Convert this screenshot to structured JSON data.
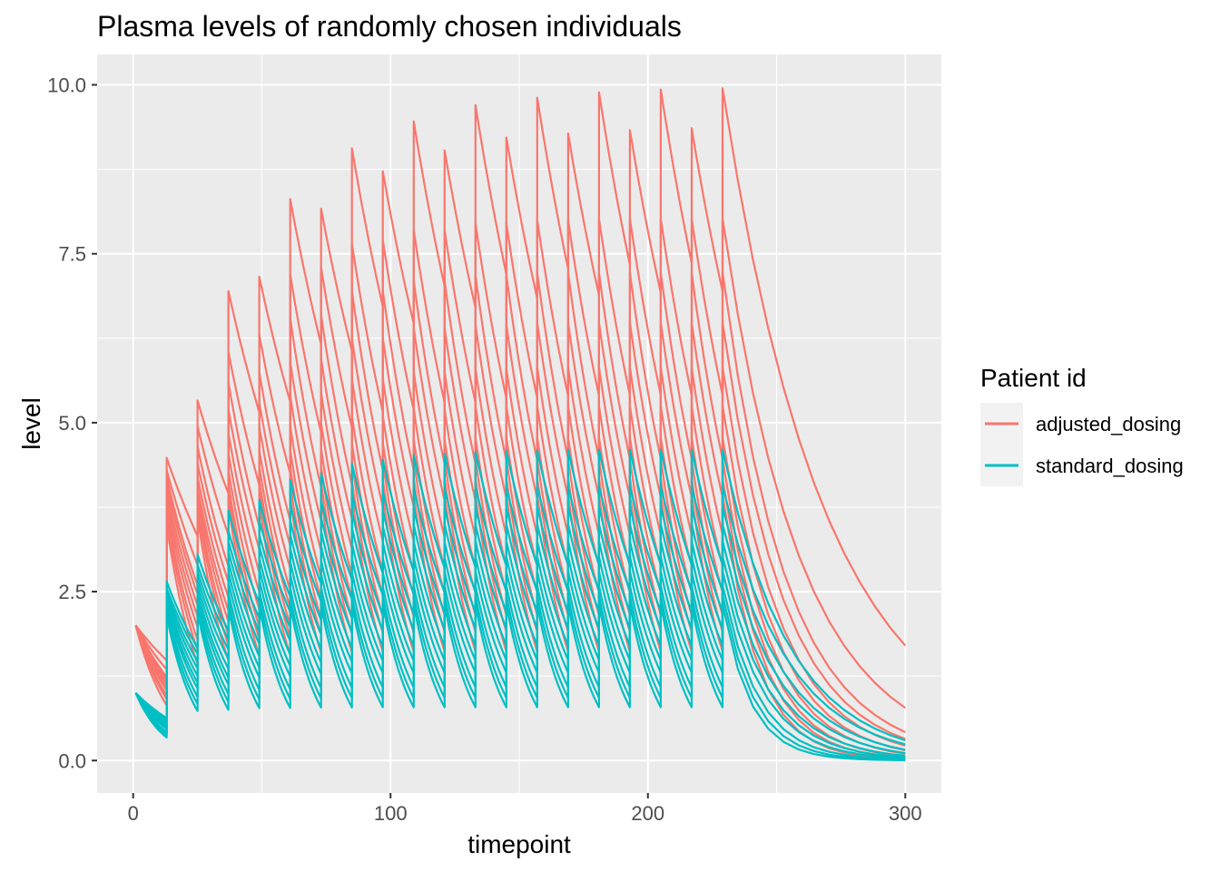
{
  "chart_data": {
    "type": "line",
    "title": "Plasma levels of randomly chosen individuals",
    "xlabel": "timepoint",
    "ylabel": "level",
    "xlim": [
      -14,
      314
    ],
    "ylim": [
      -0.48,
      10.45
    ],
    "x_ticks": [
      0,
      100,
      200,
      300
    ],
    "x_tick_labels": [
      "0",
      "100",
      "200",
      "300"
    ],
    "y_ticks": [
      0,
      2.5,
      5,
      7.5,
      10
    ],
    "y_tick_labels": [
      "0.0",
      "2.5",
      "5.0",
      "7.5",
      "10.0"
    ],
    "grid": true,
    "legend": {
      "title": "Patient id",
      "position": "right",
      "entries": [
        {
          "label": "adjusted_dosing",
          "color": "#F8766D"
        },
        {
          "label": "standard_dosing",
          "color": "#00BFC4"
        }
      ]
    },
    "dosing": {
      "start_time": 1,
      "end_time": 300,
      "dose_times": [
        13,
        25,
        37,
        49,
        61,
        73,
        85,
        97,
        109,
        121,
        133,
        145,
        157,
        169,
        181,
        193,
        205,
        217,
        229
      ]
    },
    "series": [
      {
        "group": "adjusted_dosing",
        "color": "#F8766D",
        "initial_level": 2.0,
        "peak_levels": [
          4.48,
          5.33,
          6.95,
          7.16,
          8.31,
          8.17,
          9.06,
          8.72,
          9.46,
          9.03,
          9.7,
          9.22,
          9.81,
          9.28,
          9.89,
          9.33,
          9.93,
          9.36,
          9.95
        ],
        "final_level": 1.7
      },
      {
        "group": "adjusted_dosing",
        "color": "#F8766D",
        "initial_level": 2.0,
        "peak_levels": [
          4.3,
          4.95,
          6.05,
          6.3,
          7.2,
          7.3,
          7.65,
          7.7,
          7.85,
          7.85,
          7.95,
          7.95,
          8.0,
          8.0,
          8.02,
          8.02,
          8.02,
          8.02,
          8.02
        ],
        "final_level": 0.78
      },
      {
        "group": "adjusted_dosing",
        "color": "#F8766D",
        "initial_level": 2.0,
        "peak_levels": [
          4.2,
          4.65,
          5.6,
          5.75,
          6.55,
          6.6,
          6.95,
          6.95,
          7.1,
          7.1,
          7.18,
          7.18,
          7.22,
          7.22,
          7.22,
          7.22,
          7.22,
          7.22,
          7.22
        ],
        "final_level": 0.42
      },
      {
        "group": "adjusted_dosing",
        "color": "#F8766D",
        "initial_level": 2.0,
        "peak_levels": [
          4.1,
          4.4,
          5.2,
          5.3,
          5.9,
          5.95,
          6.25,
          6.25,
          6.4,
          6.4,
          6.45,
          6.45,
          6.48,
          6.48,
          6.48,
          6.48,
          6.48,
          6.48,
          6.48
        ],
        "final_level": 0.32
      },
      {
        "group": "adjusted_dosing",
        "color": "#F8766D",
        "initial_level": 2.0,
        "peak_levels": [
          4.0,
          4.2,
          4.85,
          4.95,
          5.4,
          5.45,
          5.65,
          5.65,
          5.75,
          5.75,
          5.8,
          5.8,
          5.82,
          5.82,
          5.82,
          5.82,
          5.82,
          5.82,
          5.82
        ],
        "final_level": 0.22
      },
      {
        "group": "adjusted_dosing",
        "color": "#F8766D",
        "initial_level": 2.0,
        "peak_levels": [
          3.9,
          4.05,
          4.55,
          4.6,
          4.95,
          5.0,
          5.1,
          5.1,
          5.2,
          5.2,
          5.25,
          5.25,
          5.25,
          5.25,
          5.25,
          5.25,
          5.25,
          5.25,
          5.25
        ],
        "final_level": 0.15
      },
      {
        "group": "adjusted_dosing",
        "color": "#F8766D",
        "initial_level": 2.0,
        "peak_levels": [
          3.8,
          3.95,
          4.3,
          4.35,
          4.6,
          4.62,
          4.7,
          4.7,
          4.75,
          4.75,
          4.78,
          4.78,
          4.78,
          4.78,
          4.78,
          4.78,
          4.78,
          4.78,
          4.78
        ],
        "final_level": 0.1
      },
      {
        "group": "adjusted_dosing",
        "color": "#F8766D",
        "initial_level": 2.0,
        "peak_levels": [
          3.7,
          3.85,
          4.1,
          4.15,
          4.35,
          4.36,
          4.42,
          4.42,
          4.45,
          4.45,
          4.46,
          4.46,
          4.46,
          4.46,
          4.46,
          4.46,
          4.46,
          4.46,
          4.46
        ],
        "final_level": 0.06
      },
      {
        "group": "adjusted_dosing",
        "color": "#F8766D",
        "initial_level": 2.0,
        "peak_levels": [
          3.6,
          3.75,
          3.95,
          4.0,
          4.1,
          4.12,
          4.15,
          4.15,
          4.18,
          4.18,
          4.18,
          4.18,
          4.18,
          4.18,
          4.18,
          4.18,
          4.18,
          4.18,
          4.18
        ],
        "final_level": 0.04
      },
      {
        "group": "adjusted_dosing",
        "color": "#F8766D",
        "initial_level": 2.0,
        "peak_levels": [
          3.5,
          3.62,
          3.8,
          3.82,
          3.9,
          3.91,
          3.93,
          3.93,
          3.94,
          3.94,
          3.94,
          3.94,
          3.94,
          3.94,
          3.94,
          3.94,
          3.94,
          3.94,
          3.94
        ],
        "final_level": 0.02
      },
      {
        "group": "standard_dosing",
        "color": "#00BFC4",
        "initial_level": 1.0,
        "peak_levels": [
          2.65,
          3.05,
          3.7,
          3.85,
          4.15,
          4.25,
          4.4,
          4.45,
          4.52,
          4.54,
          4.57,
          4.58,
          4.59,
          4.6,
          4.6,
          4.6,
          4.6,
          4.6,
          4.6
        ],
        "final_level": 0.3
      },
      {
        "group": "standard_dosing",
        "color": "#00BFC4",
        "initial_level": 1.0,
        "peak_levels": [
          2.55,
          2.9,
          3.4,
          3.55,
          3.8,
          3.85,
          3.95,
          3.98,
          4.02,
          4.03,
          4.05,
          4.05,
          4.06,
          4.06,
          4.06,
          4.06,
          4.06,
          4.06,
          4.06
        ],
        "final_level": 0.24
      },
      {
        "group": "standard_dosing",
        "color": "#00BFC4",
        "initial_level": 1.0,
        "peak_levels": [
          2.5,
          2.8,
          3.25,
          3.35,
          3.55,
          3.6,
          3.68,
          3.7,
          3.73,
          3.74,
          3.75,
          3.75,
          3.76,
          3.76,
          3.76,
          3.76,
          3.76,
          3.76,
          3.76
        ],
        "final_level": 0.16
      },
      {
        "group": "standard_dosing",
        "color": "#00BFC4",
        "initial_level": 1.0,
        "peak_levels": [
          2.45,
          2.7,
          3.1,
          3.18,
          3.35,
          3.4,
          3.45,
          3.47,
          3.49,
          3.5,
          3.5,
          3.5,
          3.5,
          3.5,
          3.5,
          3.5,
          3.5,
          3.5,
          3.5
        ],
        "final_level": 0.11
      },
      {
        "group": "standard_dosing",
        "color": "#00BFC4",
        "initial_level": 1.0,
        "peak_levels": [
          2.4,
          2.6,
          2.95,
          3.0,
          3.15,
          3.18,
          3.22,
          3.23,
          3.24,
          3.24,
          3.25,
          3.25,
          3.25,
          3.25,
          3.25,
          3.25,
          3.25,
          3.25,
          3.25
        ],
        "final_level": 0.07
      },
      {
        "group": "standard_dosing",
        "color": "#00BFC4",
        "initial_level": 1.0,
        "peak_levels": [
          2.35,
          2.5,
          2.8,
          2.85,
          2.95,
          2.97,
          3.0,
          3.0,
          3.01,
          3.01,
          3.02,
          3.02,
          3.02,
          3.02,
          3.02,
          3.02,
          3.02,
          3.02,
          3.02
        ],
        "final_level": 0.045
      },
      {
        "group": "standard_dosing",
        "color": "#00BFC4",
        "initial_level": 1.0,
        "peak_levels": [
          2.3,
          2.42,
          2.65,
          2.68,
          2.76,
          2.77,
          2.79,
          2.79,
          2.8,
          2.8,
          2.8,
          2.8,
          2.8,
          2.8,
          2.8,
          2.8,
          2.8,
          2.8,
          2.8
        ],
        "final_level": 0.03
      },
      {
        "group": "standard_dosing",
        "color": "#00BFC4",
        "initial_level": 1.0,
        "peak_levels": [
          2.25,
          2.35,
          2.5,
          2.52,
          2.56,
          2.57,
          2.58,
          2.58,
          2.59,
          2.59,
          2.59,
          2.59,
          2.59,
          2.59,
          2.59,
          2.59,
          2.59,
          2.59,
          2.59
        ],
        "final_level": 0.015
      },
      {
        "group": "standard_dosing",
        "color": "#00BFC4",
        "initial_level": 1.0,
        "peak_levels": [
          2.2,
          2.28,
          2.38,
          2.4,
          2.42,
          2.43,
          2.43,
          2.43,
          2.44,
          2.44,
          2.44,
          2.44,
          2.44,
          2.44,
          2.44,
          2.44,
          2.44,
          2.44,
          2.44
        ],
        "final_level": 0.008
      },
      {
        "group": "standard_dosing",
        "color": "#00BFC4",
        "initial_level": 1.0,
        "peak_levels": [
          2.15,
          2.2,
          2.27,
          2.28,
          2.3,
          2.3,
          2.31,
          2.31,
          2.31,
          2.31,
          2.31,
          2.31,
          2.31,
          2.31,
          2.31,
          2.31,
          2.31,
          2.31,
          2.31
        ],
        "final_level": 0.004
      }
    ]
  }
}
